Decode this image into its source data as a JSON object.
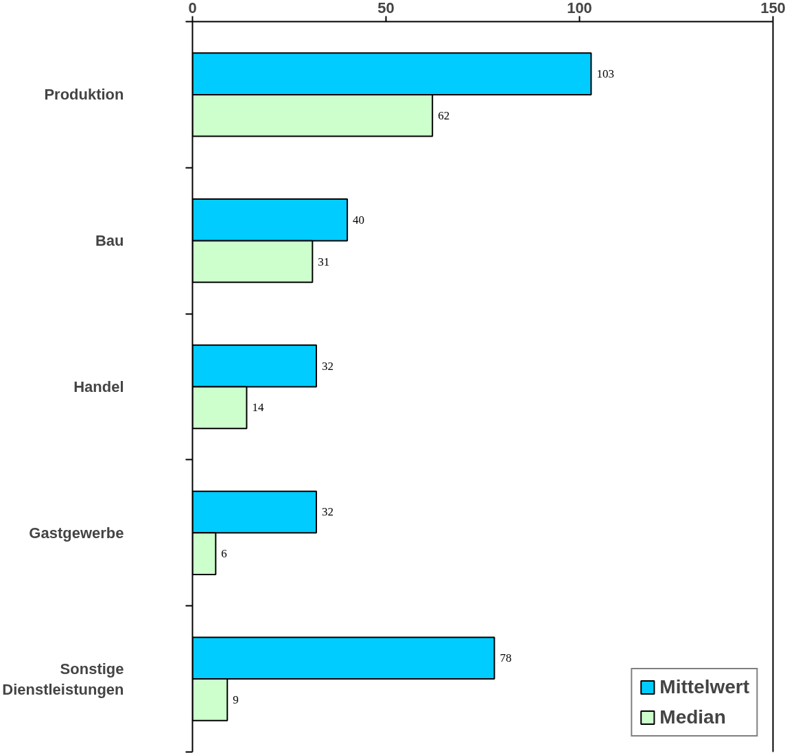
{
  "chart_data": {
    "type": "bar",
    "orientation": "horizontal",
    "categories": [
      "Produktion",
      "Bau",
      "Handel",
      "Gastgewerbe",
      "Sonstige Dienstleistungen"
    ],
    "series": [
      {
        "name": "Mittelwert",
        "color": "#00ccff",
        "values": [
          103,
          40,
          32,
          32,
          78
        ]
      },
      {
        "name": "Median",
        "color": "#ccffcc",
        "values": [
          62,
          31,
          14,
          6,
          9
        ]
      }
    ],
    "xlim": [
      0,
      150
    ],
    "xticks": [
      0,
      50,
      100,
      150
    ],
    "data_labels": true,
    "grid": false,
    "legend": "bottom right"
  }
}
